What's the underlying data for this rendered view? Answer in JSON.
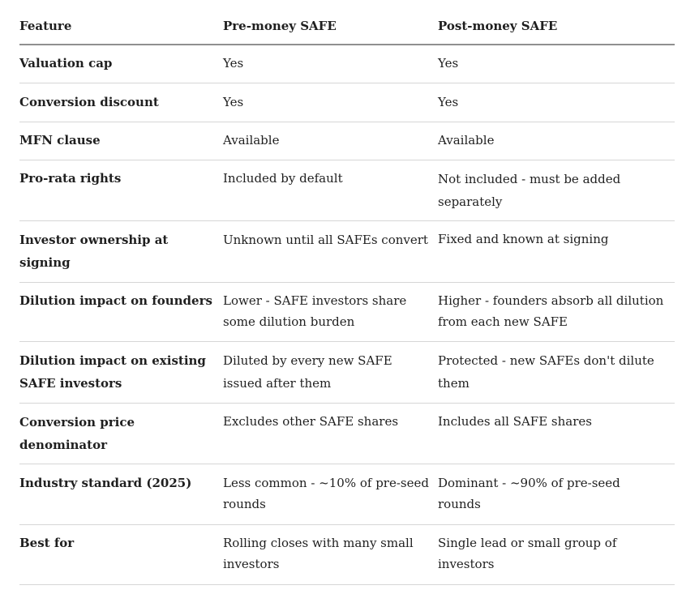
{
  "table": {
    "headers": [
      "Feature",
      "Pre-money SAFE",
      "Post-money SAFE"
    ],
    "rows": [
      [
        "Valuation cap",
        "Yes",
        "Yes"
      ],
      [
        "Conversion discount",
        "Yes",
        "Yes"
      ],
      [
        "MFN clause",
        "Available",
        "Available"
      ],
      [
        "Pro-rata rights",
        "Included by default",
        "Not included - must be added separately"
      ],
      [
        "Investor ownership at signing",
        "Unknown until all SAFEs convert",
        "Fixed and known at signing"
      ],
      [
        "Dilution impact on founders",
        "Lower - SAFE investors share some dilution burden",
        "Higher - founders absorb all dilution from each new SAFE"
      ],
      [
        "Dilution impact on existing SAFE investors",
        "Diluted by every new SAFE issued after them",
        "Protected - new SAFEs don't dilute them"
      ],
      [
        "Conversion price denominator",
        "Excludes other SAFE shares",
        "Includes all SAFE shares"
      ],
      [
        "Industry standard (2025)",
        "Less common - ~10% of pre-seed rounds",
        "Dominant - ~90% of pre-seed rounds"
      ],
      [
        "Best for",
        "Rolling closes with many small investors",
        "Single lead or small group of investors"
      ]
    ]
  }
}
